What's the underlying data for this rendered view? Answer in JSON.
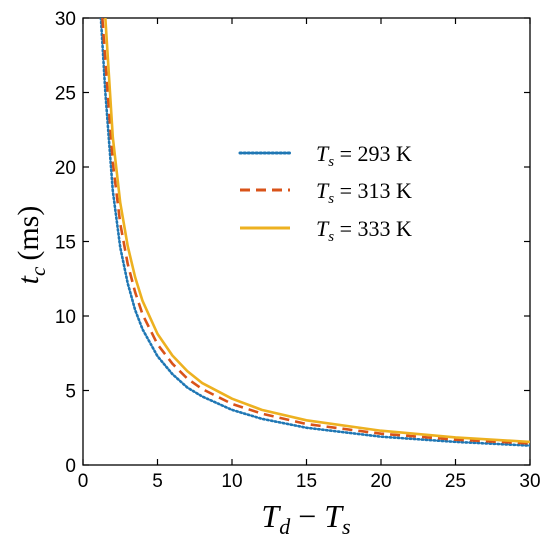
{
  "chart_data": {
    "type": "line",
    "xlabel": {
      "T1": "T",
      "sub1": "d",
      "op": " − ",
      "T2": "T",
      "sub2": "s"
    },
    "ylabel": {
      "t": "t",
      "sub": "c",
      "unit": "(ms)"
    },
    "xlim": [
      0,
      30
    ],
    "ylim": [
      0,
      30
    ],
    "xticks": [
      "0",
      "5",
      "10",
      "15",
      "20",
      "25",
      "30"
    ],
    "yticks": [
      "0",
      "5",
      "10",
      "15",
      "20",
      "25",
      "30"
    ],
    "grid": false,
    "legend_position": "upper-right",
    "series": [
      {
        "label": {
          "T": "T",
          "sub": "s",
          "eq": " = 293  K"
        },
        "color": "#1f77b4",
        "style": "dotted",
        "x": [
          1.2,
          1.5,
          2,
          2.5,
          3,
          3.5,
          4,
          5,
          6,
          7,
          8,
          10,
          12,
          15,
          20,
          25,
          30
        ],
        "y": [
          30,
          25,
          18.4,
          14.6,
          12.2,
          10.4,
          9.1,
          7.3,
          6.1,
          5.2,
          4.6,
          3.7,
          3.1,
          2.5,
          1.9,
          1.55,
          1.3
        ]
      },
      {
        "label": {
          "T": "T",
          "sub": "s",
          "eq": " = 313  K"
        },
        "color": "#d95319",
        "style": "dashed",
        "x": [
          1.3,
          1.5,
          2,
          2.5,
          3,
          3.5,
          4,
          5,
          6,
          7,
          8,
          10,
          12,
          15,
          20,
          25,
          30
        ],
        "y": [
          30,
          27.1,
          20.3,
          16.2,
          13.5,
          11.6,
          10.1,
          8.1,
          6.8,
          5.8,
          5.1,
          4.1,
          3.45,
          2.75,
          2.1,
          1.7,
          1.45
        ]
      },
      {
        "label": {
          "T": "T",
          "sub": "s",
          "eq": " = 333  K"
        },
        "color": "#edb120",
        "style": "solid",
        "x": [
          1.5,
          2,
          2.5,
          3,
          3.5,
          4,
          5,
          6,
          7,
          8,
          10,
          12,
          15,
          20,
          25,
          30
        ],
        "y": [
          30,
          22,
          17.6,
          14.7,
          12.6,
          11,
          8.8,
          7.35,
          6.3,
          5.5,
          4.45,
          3.7,
          3,
          2.3,
          1.85,
          1.55
        ]
      }
    ]
  }
}
